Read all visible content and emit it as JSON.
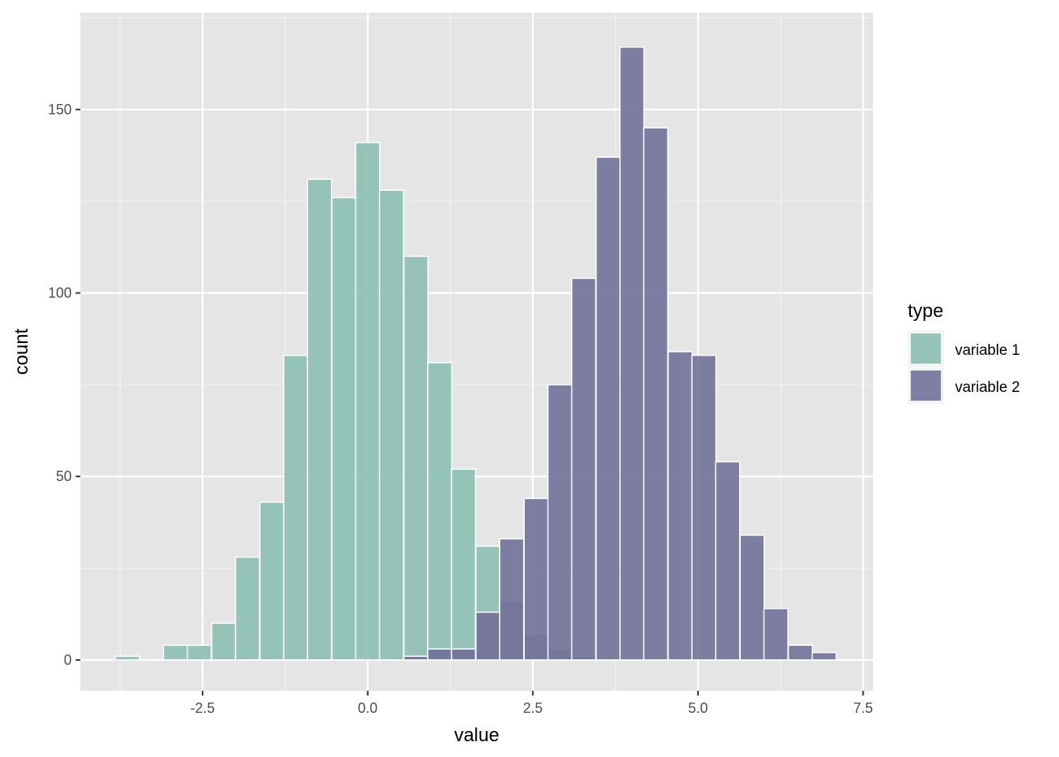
{
  "chart_data": {
    "type": "bar",
    "subtype": "overlapping-histogram",
    "title": "",
    "xlabel": "value",
    "ylabel": "count",
    "xlim": [
      -4.35,
      7.65
    ],
    "ylim": [
      -8.4,
      176.4
    ],
    "x_ticks": [
      -2.5,
      0.0,
      2.5,
      5.0,
      7.5
    ],
    "x_tick_labels": [
      "-2.5",
      "0.0",
      "2.5",
      "5.0",
      "7.5"
    ],
    "y_ticks": [
      0,
      50,
      100,
      150
    ],
    "y_tick_labels": [
      "0",
      "50",
      "100",
      "150"
    ],
    "grid": true,
    "bin_width": 0.3636,
    "legend": {
      "title": "type",
      "position": "right"
    },
    "series": [
      {
        "name": "variable 1",
        "color": "#8dbfb3",
        "bins": [
          {
            "x": -3.64,
            "count": 1
          },
          {
            "x": -2.91,
            "count": 4
          },
          {
            "x": -2.55,
            "count": 4
          },
          {
            "x": -2.18,
            "count": 10
          },
          {
            "x": -1.82,
            "count": 28
          },
          {
            "x": -1.45,
            "count": 43
          },
          {
            "x": -1.09,
            "count": 83
          },
          {
            "x": -0.73,
            "count": 131
          },
          {
            "x": -0.36,
            "count": 126
          },
          {
            "x": 0.0,
            "count": 141
          },
          {
            "x": 0.36,
            "count": 128
          },
          {
            "x": 0.73,
            "count": 110
          },
          {
            "x": 1.09,
            "count": 81
          },
          {
            "x": 1.45,
            "count": 52
          },
          {
            "x": 1.82,
            "count": 31
          },
          {
            "x": 2.18,
            "count": 16
          },
          {
            "x": 2.55,
            "count": 7
          },
          {
            "x": 2.91,
            "count": 3
          },
          {
            "x": 3.27,
            "count": 1
          }
        ]
      },
      {
        "name": "variable 2",
        "color": "#6e6d97",
        "bins": [
          {
            "x": 0.73,
            "count": 1
          },
          {
            "x": 1.09,
            "count": 3
          },
          {
            "x": 1.45,
            "count": 3
          },
          {
            "x": 1.82,
            "count": 13
          },
          {
            "x": 2.18,
            "count": 33
          },
          {
            "x": 2.55,
            "count": 44
          },
          {
            "x": 2.91,
            "count": 75
          },
          {
            "x": 3.27,
            "count": 104
          },
          {
            "x": 3.64,
            "count": 137
          },
          {
            "x": 4.0,
            "count": 167
          },
          {
            "x": 4.36,
            "count": 145
          },
          {
            "x": 4.73,
            "count": 84
          },
          {
            "x": 5.09,
            "count": 83
          },
          {
            "x": 5.45,
            "count": 54
          },
          {
            "x": 5.82,
            "count": 34
          },
          {
            "x": 6.18,
            "count": 14
          },
          {
            "x": 6.55,
            "count": 4
          },
          {
            "x": 6.91,
            "count": 2
          }
        ]
      }
    ]
  }
}
